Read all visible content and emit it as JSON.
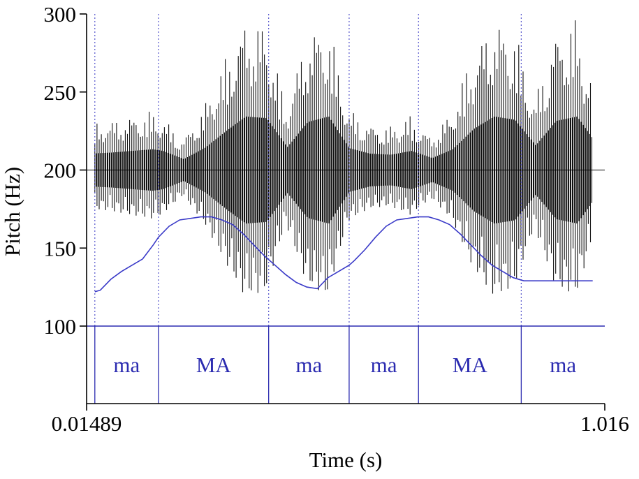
{
  "chart_data": {
    "type": "line",
    "title": "",
    "xlabel": "Time (s)",
    "ylabel": "Pitch (Hz)",
    "xlim": [
      0.01489,
      1.016
    ],
    "ylim": [
      100,
      300
    ],
    "x_tick_labels": [
      "0.01489",
      "1.016"
    ],
    "y_ticks": [
      100,
      150,
      200,
      250,
      300
    ],
    "y_tick_labels": [
      "100",
      "150",
      "200",
      "250",
      "300"
    ],
    "colors": {
      "pitch_line": "#3a3ac8",
      "waveform": "#111111",
      "tier": "#2b2bb0",
      "boundary": "#5555cc"
    },
    "series": [
      {
        "x": [
          0.0308,
          0.0413,
          0.0618,
          0.0822,
          0.1027,
          0.1231,
          0.1436,
          0.1538,
          0.1743,
          0.1947,
          0.2152,
          0.2357,
          0.2561,
          0.2766,
          0.297,
          0.3175,
          0.3379,
          0.3584,
          0.3789,
          0.3993,
          0.4198,
          0.4402,
          0.4607,
          0.4811,
          0.5016,
          0.5221,
          0.5323,
          0.5527,
          0.5732,
          0.5937,
          0.6141,
          0.6346,
          0.655,
          0.6755,
          0.6959,
          0.7164,
          0.7369,
          0.7573,
          0.7778,
          0.7982,
          0.8187,
          0.8392,
          0.8596,
          0.8801,
          0.9005,
          0.921,
          0.9415,
          0.9619,
          0.9824,
          0.9926
        ],
        "y": [
          122,
          123,
          130,
          135,
          139,
          143,
          152,
          157,
          164,
          168,
          169,
          170,
          170,
          168,
          165,
          159,
          152,
          145,
          139,
          133,
          128,
          125,
          124,
          131,
          135,
          139,
          142,
          149,
          157,
          164,
          168,
          169,
          170,
          170,
          168,
          165,
          159,
          152,
          145,
          139,
          135,
          131,
          129,
          129,
          129,
          129,
          129,
          129,
          129,
          129
        ]
      }
    ],
    "waveform": {
      "center": 200,
      "envelope_times": [
        0.02,
        0.06,
        0.1,
        0.14,
        0.16,
        0.2,
        0.24,
        0.28,
        0.32,
        0.36,
        0.4,
        0.44,
        0.48,
        0.52,
        0.56,
        0.6,
        0.64,
        0.68,
        0.72,
        0.76,
        0.8,
        0.84,
        0.88,
        0.92,
        0.96,
        1.0
      ],
      "envelope_hz": [
        30,
        32,
        35,
        38,
        35,
        20,
        40,
        70,
        98,
        95,
        42,
        88,
        98,
        40,
        30,
        28,
        35,
        22,
        38,
        75,
        98,
        92,
        45,
        90,
        98,
        45
      ]
    },
    "tier": {
      "boundaries": [
        0.0308,
        0.1538,
        0.3666,
        0.5221,
        0.6561,
        0.8546,
        1.016
      ],
      "labels": [
        {
          "x": 0.0923,
          "text": "ma"
        },
        {
          "x": 0.2602,
          "text": "MA"
        },
        {
          "x": 0.4444,
          "text": "ma"
        },
        {
          "x": 0.5891,
          "text": "ma"
        },
        {
          "x": 0.7554,
          "text": "MA"
        },
        {
          "x": 0.9353,
          "text": "ma"
        }
      ]
    }
  }
}
